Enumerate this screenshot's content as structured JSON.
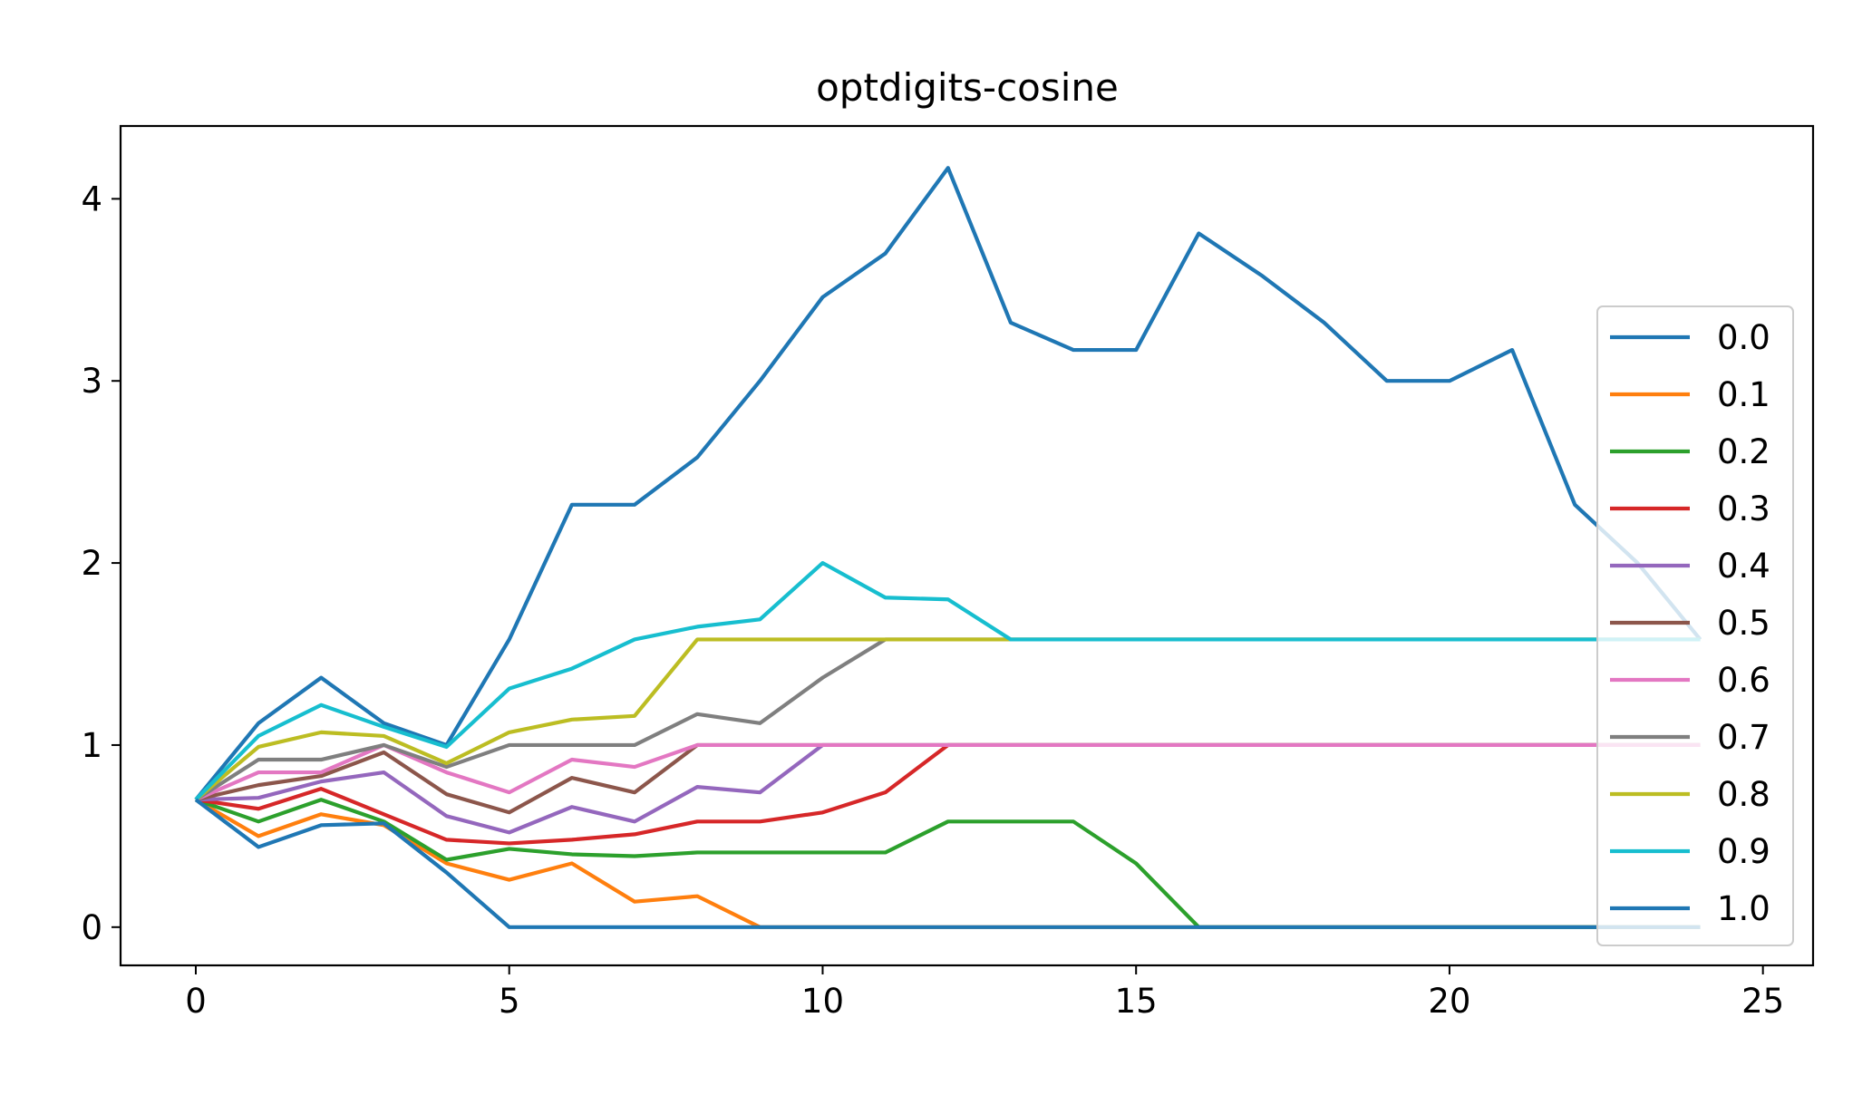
{
  "chart_data": {
    "type": "line",
    "title": "optdigits-cosine",
    "xlabel": "",
    "ylabel": "",
    "xlim": [
      -1.2,
      25.8
    ],
    "ylim": [
      -0.21,
      4.4
    ],
    "xticks": [
      0,
      5,
      10,
      15,
      20,
      25
    ],
    "yticks": [
      0,
      1,
      2,
      3,
      4
    ],
    "grid": false,
    "legend_position": "right",
    "x": [
      0,
      1,
      2,
      3,
      4,
      5,
      6,
      7,
      8,
      9,
      10,
      11,
      12,
      13,
      14,
      15,
      16,
      17,
      18,
      19,
      20,
      21,
      22,
      23,
      24
    ],
    "series": [
      {
        "name": "0.0",
        "color": "#1f77b4",
        "values": [
          0.7,
          1.12,
          1.37,
          1.12,
          1.0,
          1.58,
          2.32,
          2.32,
          2.58,
          3.0,
          3.46,
          3.7,
          4.17,
          3.32,
          3.17,
          3.17,
          3.81,
          3.58,
          3.32,
          3.0,
          3.0,
          3.17,
          2.32,
          2.0,
          1.58
        ]
      },
      {
        "name": "0.1",
        "color": "#ff7f0e",
        "values": [
          0.7,
          0.5,
          0.62,
          0.56,
          0.35,
          0.26,
          0.35,
          0.14,
          0.17,
          0.0,
          0.0,
          0.0,
          0.0,
          0.0,
          0.0,
          0.0,
          0.0,
          0.0,
          0.0,
          0.0,
          0.0,
          0.0,
          0.0,
          0.0,
          0.0
        ]
      },
      {
        "name": "0.2",
        "color": "#2ca02c",
        "values": [
          0.7,
          0.58,
          0.7,
          0.58,
          0.37,
          0.43,
          0.4,
          0.39,
          0.41,
          0.41,
          0.41,
          0.41,
          0.58,
          0.58,
          0.58,
          0.35,
          0.0,
          0.0,
          0.0,
          0.0,
          0.0,
          0.0,
          0.0,
          0.0,
          0.0
        ]
      },
      {
        "name": "0.3",
        "color": "#d62728",
        "values": [
          0.7,
          0.65,
          0.76,
          0.62,
          0.48,
          0.46,
          0.48,
          0.51,
          0.58,
          0.58,
          0.63,
          0.74,
          1.0,
          1.0,
          1.0,
          1.0,
          1.0,
          1.0,
          1.0,
          1.0,
          1.0,
          1.0,
          1.0,
          1.0,
          1.0
        ]
      },
      {
        "name": "0.4",
        "color": "#9467bd",
        "values": [
          0.7,
          0.71,
          0.8,
          0.85,
          0.61,
          0.52,
          0.66,
          0.58,
          0.77,
          0.74,
          1.0,
          1.0,
          1.0,
          1.0,
          1.0,
          1.0,
          1.0,
          1.0,
          1.0,
          1.0,
          1.0,
          1.0,
          1.0,
          1.0,
          1.0
        ]
      },
      {
        "name": "0.5",
        "color": "#8c564b",
        "values": [
          0.7,
          0.78,
          0.83,
          0.96,
          0.73,
          0.63,
          0.82,
          0.74,
          1.0,
          1.0,
          1.0,
          1.0,
          1.0,
          1.0,
          1.0,
          1.0,
          1.0,
          1.0,
          1.0,
          1.0,
          1.0,
          1.0,
          1.0,
          1.0,
          1.0
        ]
      },
      {
        "name": "0.6",
        "color": "#e377c2",
        "values": [
          0.7,
          0.85,
          0.85,
          1.0,
          0.85,
          0.74,
          0.92,
          0.88,
          1.0,
          1.0,
          1.0,
          1.0,
          1.0,
          1.0,
          1.0,
          1.0,
          1.0,
          1.0,
          1.0,
          1.0,
          1.0,
          1.0,
          1.0,
          1.0,
          1.0
        ]
      },
      {
        "name": "0.7",
        "color": "#7f7f7f",
        "values": [
          0.7,
          0.92,
          0.92,
          1.0,
          0.88,
          1.0,
          1.0,
          1.0,
          1.17,
          1.12,
          1.37,
          1.58,
          1.58,
          1.58,
          1.58,
          1.58,
          1.58,
          1.58,
          1.58,
          1.58,
          1.58,
          1.58,
          1.58,
          1.58,
          1.58
        ]
      },
      {
        "name": "0.8",
        "color": "#bcbd22",
        "values": [
          0.7,
          0.99,
          1.07,
          1.05,
          0.9,
          1.07,
          1.14,
          1.16,
          1.58,
          1.58,
          1.58,
          1.58,
          1.58,
          1.58,
          1.58,
          1.58,
          1.58,
          1.58,
          1.58,
          1.58,
          1.58,
          1.58,
          1.58,
          1.58,
          1.58
        ]
      },
      {
        "name": "0.9",
        "color": "#17becf",
        "values": [
          0.7,
          1.05,
          1.22,
          1.1,
          0.99,
          1.31,
          1.42,
          1.58,
          1.65,
          1.69,
          2.0,
          1.81,
          1.8,
          1.58,
          1.58,
          1.58,
          1.58,
          1.58,
          1.58,
          1.58,
          1.58,
          1.58,
          1.58,
          1.58,
          1.58
        ]
      },
      {
        "name": "1.0",
        "color": "#1f77b4",
        "values": [
          0.7,
          0.44,
          0.56,
          0.57,
          0.3,
          0.0,
          0.0,
          0.0,
          0.0,
          0.0,
          0.0,
          0.0,
          0.0,
          0.0,
          0.0,
          0.0,
          0.0,
          0.0,
          0.0,
          0.0,
          0.0,
          0.0,
          0.0,
          0.0,
          0.0
        ]
      }
    ]
  }
}
